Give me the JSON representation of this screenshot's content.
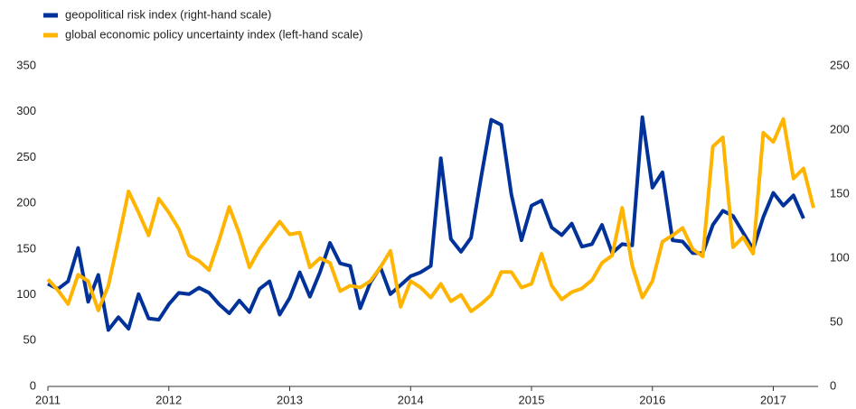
{
  "chart_data": {
    "type": "line",
    "x": [
      2011,
      2011.083,
      2011.167,
      2011.25,
      2011.333,
      2011.417,
      2011.5,
      2011.583,
      2011.667,
      2011.75,
      2011.833,
      2011.917,
      2012,
      2012.083,
      2012.167,
      2012.25,
      2012.333,
      2012.417,
      2012.5,
      2012.583,
      2012.667,
      2012.75,
      2012.833,
      2012.917,
      2013,
      2013.083,
      2013.167,
      2013.25,
      2013.333,
      2013.417,
      2013.5,
      2013.583,
      2013.667,
      2013.75,
      2013.833,
      2013.917,
      2014,
      2014.083,
      2014.167,
      2014.25,
      2014.333,
      2014.417,
      2014.5,
      2014.583,
      2014.667,
      2014.75,
      2014.833,
      2014.917,
      2015,
      2015.083,
      2015.167,
      2015.25,
      2015.333,
      2015.417,
      2015.5,
      2015.583,
      2015.667,
      2015.75,
      2015.833,
      2015.917,
      2016,
      2016.083,
      2016.167,
      2016.25,
      2016.333,
      2016.417,
      2016.5,
      2016.583,
      2016.667,
      2016.75,
      2016.833,
      2016.917,
      2017,
      2017.083,
      2017.167,
      2017.25,
      2017.333
    ],
    "series": [
      {
        "name": "geopolitical risk index (right-hand scale)",
        "color": "#003299",
        "axis": "y2",
        "values": [
          80,
          76,
          82,
          108,
          66,
          87,
          44,
          54,
          45,
          72,
          53,
          52,
          64,
          73,
          72,
          77,
          73,
          64,
          57,
          67,
          58,
          76,
          82,
          56,
          69,
          89,
          70,
          89,
          112,
          96,
          94,
          61,
          81,
          93,
          72,
          79,
          86,
          89,
          94,
          178,
          115,
          105,
          116,
          163,
          208,
          204,
          150,
          114,
          141,
          145,
          124,
          118,
          127,
          109,
          111,
          126,
          104,
          111,
          110,
          210,
          155,
          167,
          114,
          113,
          104,
          104,
          126,
          137,
          133,
          120,
          107,
          132,
          151,
          141,
          149,
          131,
          null
        ]
      },
      {
        "name": "global economic policy uncertainty index (left-hand scale)",
        "color": "#ffb400",
        "values": [
          117,
          105,
          90,
          122,
          115,
          83,
          110,
          160,
          213,
          190,
          165,
          205,
          190,
          172,
          143,
          137,
          127,
          160,
          196,
          167,
          130,
          150,
          165,
          180,
          166,
          168,
          130,
          140,
          135,
          104,
          110,
          108,
          115,
          130,
          148,
          87,
          115,
          108,
          97,
          112,
          93,
          100,
          82,
          90,
          100,
          125,
          125,
          108,
          112,
          145,
          110,
          95,
          103,
          107,
          116,
          135,
          143,
          195,
          132,
          97,
          115,
          158,
          165,
          173,
          150,
          142,
          262,
          272,
          152,
          163,
          145,
          277,
          267,
          292,
          227,
          238,
          195
        ]
      }
    ],
    "xlim": [
      2011,
      2017.37
    ],
    "xticks": [
      2011,
      2012,
      2013,
      2014,
      2015,
      2016,
      2017
    ],
    "ylim": [
      0,
      350
    ],
    "yticks": [
      0,
      50,
      100,
      150,
      200,
      250,
      300,
      350
    ],
    "y2lim": [
      0,
      250
    ],
    "y2ticks": [
      0,
      50,
      100,
      150,
      200,
      250
    ]
  }
}
